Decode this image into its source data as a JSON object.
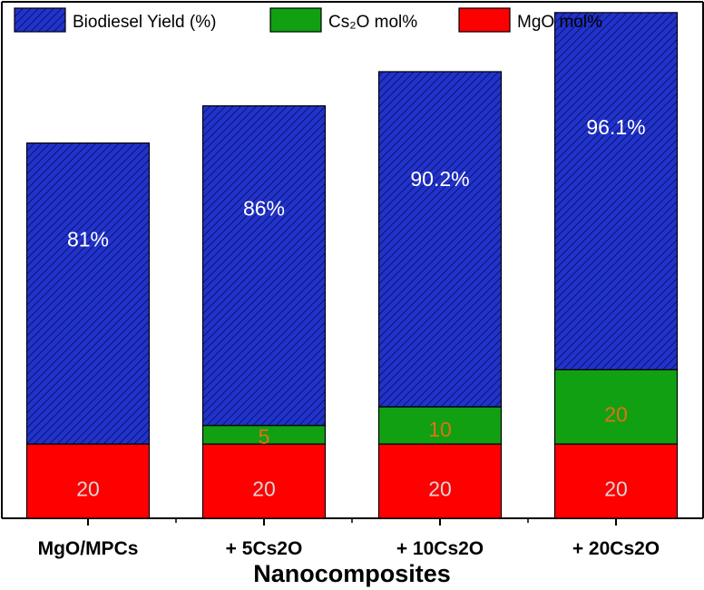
{
  "chart_data": {
    "type": "bar",
    "stacked": true,
    "categories": [
      "MgO/MPCs",
      "+ 5Cs2O",
      "+ 10Cs2O",
      "+ 20Cs2O"
    ],
    "series": [
      {
        "name": "MgO mol%",
        "values": [
          20,
          20,
          20,
          20
        ],
        "labels": [
          "20",
          "20",
          "20",
          "20"
        ],
        "color": "#ff0000",
        "label_color": "#d9d9d9"
      },
      {
        "name": "Cs₂O mol%",
        "values": [
          0,
          5,
          10,
          20
        ],
        "labels": [
          "",
          "5",
          "10",
          "20"
        ],
        "color": "#11a011",
        "label_color": "#e0701a"
      },
      {
        "name": "Biodiesel Yield (%)",
        "values": [
          81,
          86,
          90.2,
          96.1
        ],
        "labels": [
          "81%",
          "86%",
          "90.2%",
          "96.1%"
        ],
        "color": "#2233cc",
        "hatch_color": "#0a1470",
        "label_color": "#ffffff"
      }
    ],
    "legend": {
      "placement": "top-left",
      "order": [
        "Biodiesel Yield (%)",
        "Cs₂O mol%",
        "MgO mol%"
      ]
    },
    "xlabel": "Nanocomposites",
    "ylabel": "",
    "ylim": [
      0,
      139
    ],
    "grid": false
  }
}
